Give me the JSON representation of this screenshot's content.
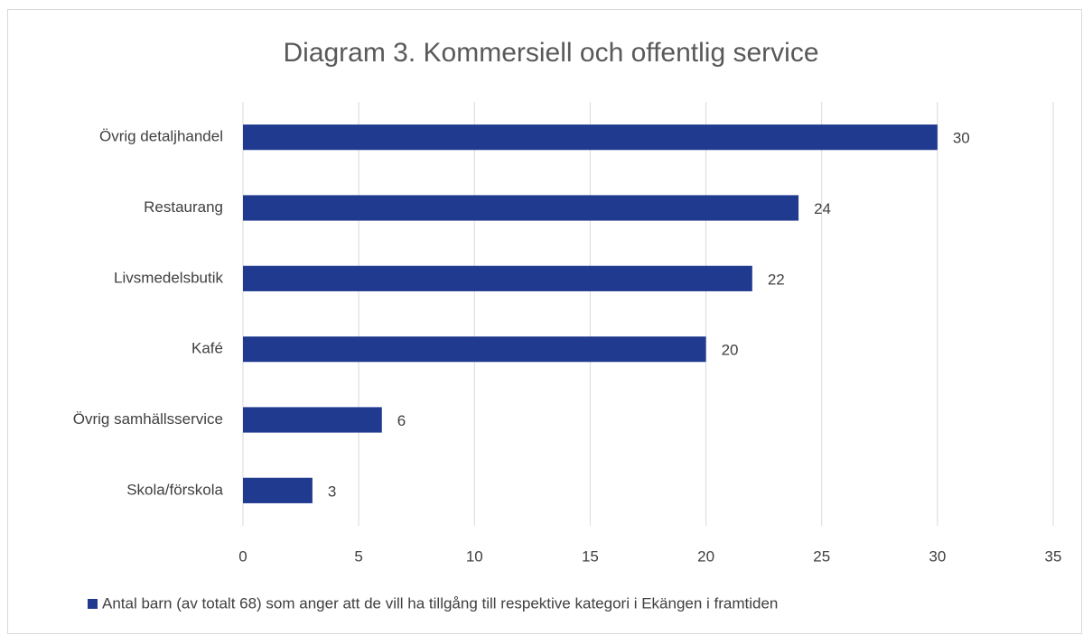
{
  "chart_data": {
    "type": "bar",
    "orientation": "horizontal",
    "title": "Diagram 3. Kommersiell och offentlig service",
    "categories": [
      "Övrig detaljhandel",
      "Restaurang",
      "Livsmedelsbutik",
      "Kafé",
      "Övrig samhällsservice",
      "Skola/förskola"
    ],
    "series": [
      {
        "name": "Antal barn (av totalt 68) som anger att de vill ha tillgång till respektive kategori i Ekängen i framtiden",
        "color": "#203a8f",
        "values": [
          30,
          24,
          22,
          20,
          6,
          3
        ]
      }
    ],
    "xlim": [
      0,
      35
    ],
    "xticks": [
      0,
      5,
      10,
      15,
      20,
      25,
      30,
      35
    ],
    "grid": true,
    "legend": "bottom"
  }
}
